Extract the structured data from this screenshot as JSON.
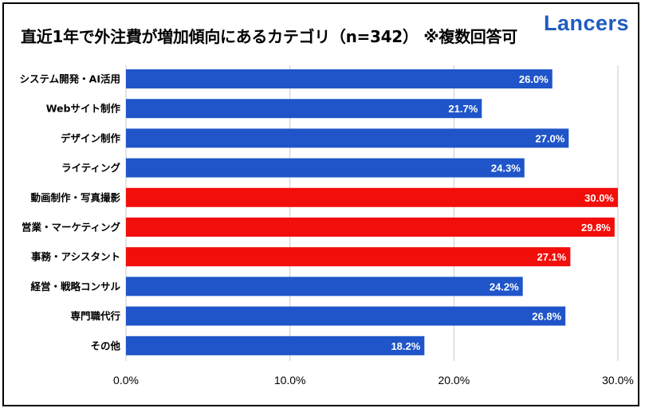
{
  "header": {
    "title": "直近1年で外注費が増加傾向にあるカテゴリ（n=342） ※複数回答可",
    "logo_text": "Lancers",
    "logo_color": "#1e5cbf"
  },
  "colors": {
    "default_bar": "#1f55c8",
    "highlight_bar": "#f20e0a",
    "gridline": "#c8c8c8"
  },
  "chart_data": {
    "type": "bar",
    "orientation": "horizontal",
    "title": "直近1年で外注費が増加傾向にあるカテゴリ（n=342） ※複数回答可",
    "categories": [
      "システム開発・AI活用",
      "Webサイト制作",
      "デザイン制作",
      "ライティング",
      "動画制作・写真撮影",
      "営業・マーケティング",
      "事務・アシスタント",
      "経営・戦略コンサル",
      "専門職代行",
      "その他"
    ],
    "values": [
      26.0,
      21.7,
      27.0,
      24.3,
      30.0,
      29.8,
      27.1,
      24.2,
      26.8,
      18.2
    ],
    "value_labels": [
      "26.0%",
      "21.7%",
      "27.0%",
      "24.3%",
      "30.0%",
      "29.8%",
      "27.1%",
      "24.2%",
      "26.8%",
      "18.2%"
    ],
    "highlighted": [
      false,
      false,
      false,
      false,
      true,
      true,
      true,
      false,
      false,
      false
    ],
    "xlim": [
      0,
      30
    ],
    "xticks": [
      0,
      10,
      20,
      30
    ],
    "xtick_labels": [
      "0.0%",
      "10.0%",
      "20.0%",
      "30.0%"
    ],
    "grid": true,
    "xlabel": "",
    "ylabel": ""
  }
}
